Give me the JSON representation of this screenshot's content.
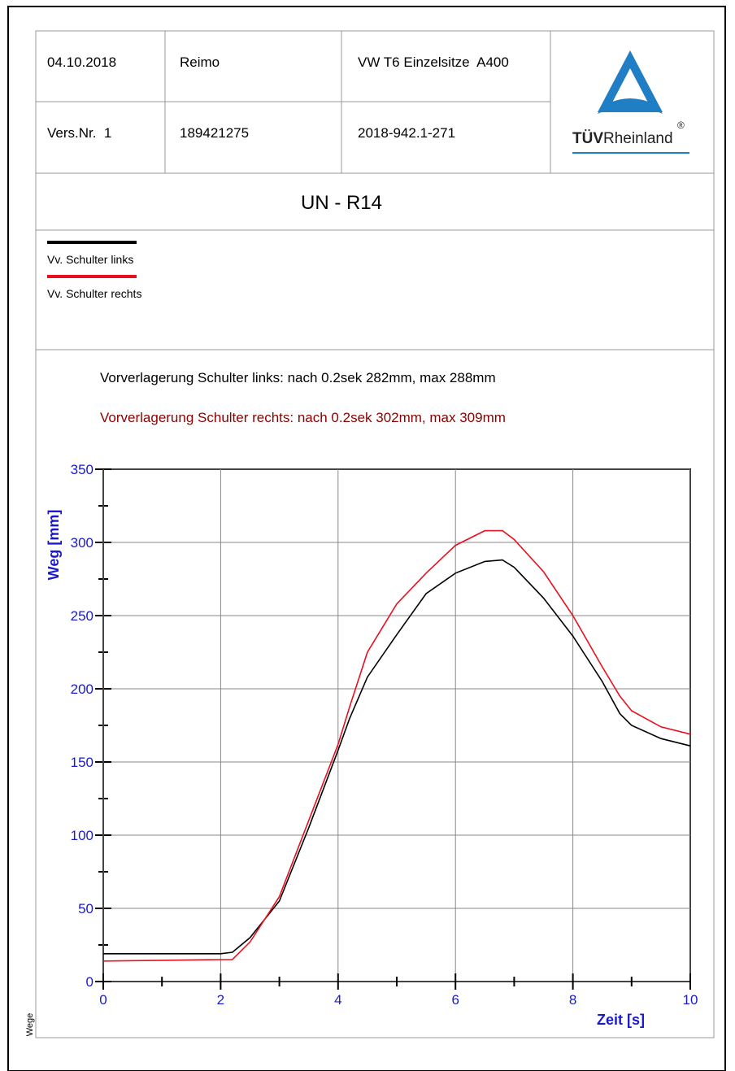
{
  "header": {
    "rows": [
      [
        "04.10.2018",
        "Reimo",
        "VW T6 Einzelsitze  A400"
      ],
      [
        "Vers.Nr.  1",
        "189421275",
        "2018-942.1-271"
      ]
    ]
  },
  "logo": {
    "bold": "TÜV",
    "text": "Rheinland",
    "mark": "®"
  },
  "title": "UN - R14",
  "footer": "Wege",
  "chart_data": {
    "type": "line",
    "annotations": [
      {
        "text": "Vorverlagerung Schulter links: nach 0.2sek 282mm, max 288mm",
        "color": "#000000"
      },
      {
        "text": "Vorverlagerung Schulter rechts: nach 0.2sek 302mm, max 309mm",
        "color": "#8b0000"
      }
    ],
    "xlabel": "Zeit [s]",
    "ylabel": "Weg [mm]",
    "x": [
      0,
      2,
      2.2,
      2.5,
      3,
      3.5,
      4,
      4.2,
      4.5,
      5,
      5.5,
      6,
      6.5,
      6.8,
      7,
      7.5,
      8,
      8.5,
      8.8,
      9,
      9.5,
      10
    ],
    "series": [
      {
        "name": "Vv. Schulter links",
        "color": "#000000",
        "values": [
          19,
          19,
          20,
          30,
          55,
          105,
          158,
          180,
          208,
          237,
          265,
          279,
          287,
          288,
          283,
          262,
          236,
          205,
          183,
          175,
          166,
          161
        ]
      },
      {
        "name": "Vv. Schulter rechts",
        "color": "#e8101e",
        "values": [
          14,
          15,
          15,
          27,
          58,
          110,
          162,
          188,
          225,
          258,
          279,
          298,
          308,
          308,
          302,
          280,
          250,
          215,
          195,
          185,
          174,
          169
        ]
      }
    ],
    "xlim": [
      0,
      10
    ],
    "ylim": [
      0,
      350
    ],
    "xticks": [
      0,
      2,
      4,
      6,
      8,
      10
    ],
    "yticks": [
      0,
      50,
      100,
      150,
      200,
      250,
      300,
      350
    ],
    "xminorticks": [
      1,
      3,
      5,
      7,
      9
    ],
    "yminorticks": [
      25,
      75,
      125,
      175,
      225,
      275,
      325
    ],
    "grid": true
  }
}
